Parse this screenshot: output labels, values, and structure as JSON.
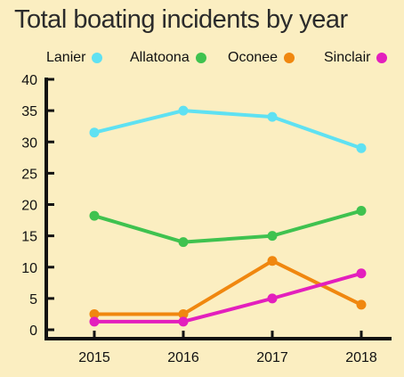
{
  "chart_data": {
    "type": "line",
    "title": "Total boating incidents by year",
    "x": [
      "2015",
      "2016",
      "2017",
      "2018"
    ],
    "ylim": [
      0,
      40
    ],
    "yticks": [
      0,
      5,
      10,
      15,
      20,
      25,
      30,
      35,
      40
    ],
    "grid": false,
    "legend_position": "top",
    "series": [
      {
        "name": "Lanier",
        "color": "#5fe1f2",
        "values": [
          31.5,
          35,
          34,
          29
        ]
      },
      {
        "name": "Allatoona",
        "color": "#3fc24f",
        "values": [
          18.2,
          14,
          15,
          19
        ]
      },
      {
        "name": "Oconee",
        "color": "#f0870f",
        "values": [
          2.5,
          2.5,
          11,
          4
        ]
      },
      {
        "name": "Sinclair",
        "color": "#e31fbd",
        "values": [
          1.3,
          1.3,
          5,
          9
        ]
      }
    ]
  }
}
